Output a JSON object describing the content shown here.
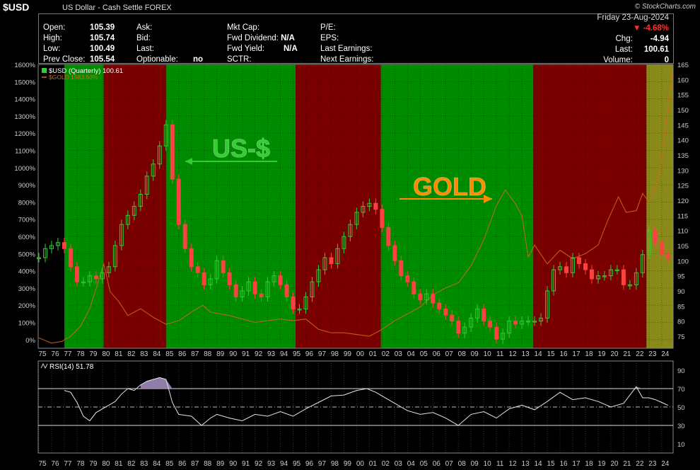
{
  "header": {
    "symbol": "$USD",
    "description": "US Dollar - Cash Settle FOREX",
    "brand": "© StockCharts.com",
    "date": "Friday  23-Aug-2024"
  },
  "quote": {
    "col1": [
      {
        "label": "Open:",
        "value": "105.39"
      },
      {
        "label": "High:",
        "value": "105.74"
      },
      {
        "label": "Low:",
        "value": "100.49"
      },
      {
        "label": "Prev Close:",
        "value": "105.54"
      }
    ],
    "col2": [
      {
        "label": "Ask:",
        "value": ""
      },
      {
        "label": "Bid:",
        "value": ""
      },
      {
        "label": "Last:",
        "value": ""
      },
      {
        "label": "Optionable:",
        "value": "no"
      }
    ],
    "col3": [
      {
        "label": "Mkt Cap:",
        "value": ""
      },
      {
        "label": "Fwd Dividend:",
        "value": "N/A"
      },
      {
        "label": "Fwd Yield:",
        "value": "N/A"
      },
      {
        "label": "SCTR:",
        "value": ""
      }
    ],
    "col4": [
      {
        "label": "P/E:",
        "value": ""
      },
      {
        "label": "EPS:",
        "value": ""
      },
      {
        "label": "Last Earnings:",
        "value": ""
      },
      {
        "label": "Next Earnings:",
        "value": ""
      }
    ],
    "change_pct": "-4.68%",
    "chg_label": "Chg:",
    "chg_value": "-4.94",
    "last_label": "Last:",
    "last_value": "100.61",
    "volume_label": "Volume:",
    "volume_value": "0",
    "down_color": "#ff3030"
  },
  "chart_data": [
    {
      "type": "candlestick+line",
      "legend": [
        {
          "name": "$USD (Quarterly) 100.61",
          "color": "#ffffff"
        },
        {
          "name": "$GOLD 1583.50%",
          "color": "#d2691e"
        }
      ],
      "x_tick_labels": [
        "75",
        "76",
        "77",
        "78",
        "79",
        "80",
        "81",
        "82",
        "83",
        "84",
        "85",
        "86",
        "87",
        "88",
        "89",
        "90",
        "91",
        "92",
        "93",
        "94",
        "95",
        "96",
        "97",
        "98",
        "99",
        "00",
        "01",
        "02",
        "03",
        "04",
        "05",
        "06",
        "07",
        "08",
        "09",
        "10",
        "11",
        "12",
        "13",
        "14",
        "15",
        "16",
        "17",
        "18",
        "19",
        "20",
        "21",
        "22",
        "23",
        "24"
      ],
      "x_range": [
        1975,
        2024.9
      ],
      "left_axis": {
        "label": "",
        "ticks": [
          "0%",
          "100%",
          "200%",
          "300%",
          "400%",
          "500%",
          "600%",
          "700%",
          "800%",
          "900%",
          "1000%",
          "1100%",
          "1200%",
          "1300%",
          "1400%",
          "1500%",
          "1600%"
        ],
        "range": [
          -50,
          1600
        ]
      },
      "right_axis": {
        "label": "",
        "ticks": [
          75,
          80,
          85,
          90,
          95,
          100,
          105,
          110,
          115,
          120,
          125,
          130,
          135,
          140,
          145,
          150,
          155,
          160,
          165
        ],
        "range": [
          71,
          165
        ]
      },
      "shaded_regions": [
        {
          "start": 1977.0,
          "end": 1980.1,
          "color": "#008c00"
        },
        {
          "start": 1980.1,
          "end": 1985.0,
          "color": "#7a0000"
        },
        {
          "start": 1985.0,
          "end": 1995.2,
          "color": "#008c00"
        },
        {
          "start": 1995.2,
          "end": 2001.9,
          "color": "#7a0000"
        },
        {
          "start": 2001.9,
          "end": 2013.9,
          "color": "#008c00"
        },
        {
          "start": 2013.9,
          "end": 2022.8,
          "color": "#7a0000"
        },
        {
          "start": 2022.8,
          "end": 2024.9,
          "color": "#8a8a1a"
        }
      ],
      "annotations": [
        {
          "text": "US-$",
          "color": "#33cc33",
          "arrow": "left"
        },
        {
          "text": "GOLD",
          "color": "#ff8c00",
          "arrow": "right"
        }
      ],
      "usd_series": {
        "name": "$USD",
        "x": [
          1975.0,
          1975.5,
          1976.0,
          1976.5,
          1977.0,
          1977.5,
          1978.0,
          1978.5,
          1979.0,
          1979.5,
          1980.0,
          1980.5,
          1981.0,
          1981.5,
          1982.0,
          1982.5,
          1983.0,
          1983.5,
          1984.0,
          1984.5,
          1985.0,
          1985.5,
          1986.0,
          1986.5,
          1987.0,
          1987.5,
          1988.0,
          1988.5,
          1989.0,
          1989.5,
          1990.0,
          1990.5,
          1991.0,
          1991.5,
          1992.0,
          1992.5,
          1993.0,
          1993.5,
          1994.0,
          1994.5,
          1995.0,
          1995.5,
          1996.0,
          1996.5,
          1997.0,
          1997.5,
          1998.0,
          1998.5,
          1999.0,
          1999.5,
          2000.0,
          2000.5,
          2001.0,
          2001.5,
          2002.0,
          2002.5,
          2003.0,
          2003.5,
          2004.0,
          2004.5,
          2005.0,
          2005.5,
          2006.0,
          2006.5,
          2007.0,
          2007.5,
          2008.0,
          2008.5,
          2009.0,
          2009.5,
          2010.0,
          2010.5,
          2011.0,
          2011.5,
          2012.0,
          2012.5,
          2013.0,
          2013.5,
          2014.0,
          2014.5,
          2015.0,
          2015.5,
          2016.0,
          2016.5,
          2017.0,
          2017.5,
          2018.0,
          2018.5,
          2019.0,
          2019.5,
          2020.0,
          2020.5,
          2021.0,
          2021.5,
          2022.0,
          2022.5,
          2023.0,
          2023.5,
          2024.0,
          2024.5
        ],
        "values": [
          101,
          104,
          105,
          106,
          104,
          98,
          93,
          93,
          95,
          94,
          96,
          98,
          105,
          112,
          115,
          118,
          122,
          128,
          132,
          138,
          145,
          127,
          112,
          104,
          98,
          96,
          92,
          94,
          100,
          96,
          92,
          88,
          90,
          93,
          89,
          88,
          93,
          95,
          92,
          88,
          84,
          84,
          88,
          93,
          97,
          101,
          99,
          104,
          108,
          112,
          116,
          118,
          119,
          117,
          111,
          105,
          100,
          95,
          93,
          89,
          87,
          89,
          86,
          84,
          82,
          80,
          76,
          78,
          81,
          84,
          80,
          78,
          74,
          76,
          80,
          79,
          80,
          80,
          80,
          81,
          90,
          97,
          98,
          96,
          101,
          99,
          97,
          94,
          95,
          95,
          97,
          97,
          92,
          92,
          96,
          102,
          110,
          106,
          102,
          101
        ]
      },
      "gold_series": {
        "name": "$GOLD",
        "x": [
          1975.0,
          1976.0,
          1976.8,
          1977.5,
          1978.3,
          1979.0,
          1979.6,
          1980.1,
          1980.6,
          1981.3,
          1982.0,
          1983.0,
          1984.0,
          1985.0,
          1986.0,
          1987.0,
          1987.9,
          1988.5,
          1990.0,
          1991.0,
          1992.0,
          1993.0,
          1994.0,
          1995.0,
          1996.0,
          1997.0,
          1998.0,
          1999.0,
          2000.0,
          2001.0,
          2002.0,
          2003.0,
          2004.0,
          2005.0,
          2006.0,
          2007.0,
          2008.0,
          2009.0,
          2010.0,
          2011.0,
          2011.7,
          2012.5,
          2013.0,
          2013.5,
          2014.0,
          2015.0,
          2016.0,
          2017.0,
          2018.0,
          2019.0,
          2019.8,
          2020.6,
          2021.2,
          2022.0,
          2022.5,
          2023.0,
          2023.6,
          2024.0,
          2024.5,
          2024.9
        ],
        "values": [
          10,
          -20,
          -10,
          20,
          80,
          180,
          320,
          440,
          280,
          220,
          140,
          180,
          130,
          90,
          110,
          160,
          200,
          160,
          140,
          120,
          100,
          110,
          120,
          110,
          120,
          60,
          40,
          40,
          30,
          20,
          60,
          110,
          150,
          190,
          260,
          300,
          330,
          430,
          580,
          780,
          870,
          790,
          720,
          480,
          550,
          440,
          520,
          470,
          500,
          550,
          700,
          830,
          740,
          750,
          850,
          800,
          900,
          1050,
          1350,
          1583.5
        ]
      },
      "up_color": "#33cc33",
      "down_color": "#ff4040"
    },
    {
      "type": "line",
      "series": [
        {
          "name": "RSI(14) 51.78"
        }
      ],
      "x": [
        1975.0,
        1976.0,
        1977.0,
        1977.5,
        1978.0,
        1978.5,
        1979.0,
        1979.5,
        1980.0,
        1980.5,
        1981.0,
        1981.5,
        1982.0,
        1982.5,
        1983.0,
        1983.5,
        1984.0,
        1984.5,
        1985.0,
        1985.5,
        1986.0,
        1987.0,
        1987.8,
        1988.5,
        1989.0,
        1990.0,
        1991.0,
        1992.0,
        1993.0,
        1994.0,
        1995.0,
        1996.0,
        1997.0,
        1998.0,
        1999.0,
        2000.0,
        2000.8,
        2001.5,
        2002.0,
        2003.0,
        2004.0,
        2005.0,
        2006.0,
        2007.0,
        2008.0,
        2009.0,
        2010.0,
        2011.0,
        2012.0,
        2013.0,
        2014.0,
        2015.0,
        2016.0,
        2017.0,
        2018.0,
        2019.0,
        2020.0,
        2021.0,
        2022.0,
        2022.5,
        2023.0,
        2023.5,
        2024.0,
        2024.5
      ],
      "values": [
        null,
        null,
        68,
        66,
        55,
        40,
        35,
        44,
        48,
        52,
        56,
        64,
        70,
        68,
        74,
        78,
        80,
        82,
        80,
        55,
        42,
        40,
        30,
        38,
        42,
        38,
        35,
        42,
        40,
        45,
        40,
        48,
        55,
        62,
        63,
        68,
        70,
        66,
        62,
        54,
        46,
        42,
        44,
        38,
        30,
        42,
        45,
        38,
        48,
        52,
        47,
        56,
        66,
        58,
        60,
        56,
        50,
        54,
        72,
        60,
        60,
        58,
        55,
        51.78
      ],
      "levels": [
        70,
        50,
        30
      ],
      "y_ticks": [
        10,
        30,
        50,
        70,
        90
      ],
      "ylim": [
        0,
        100
      ],
      "overbought_fill": "#a08ab8"
    }
  ]
}
